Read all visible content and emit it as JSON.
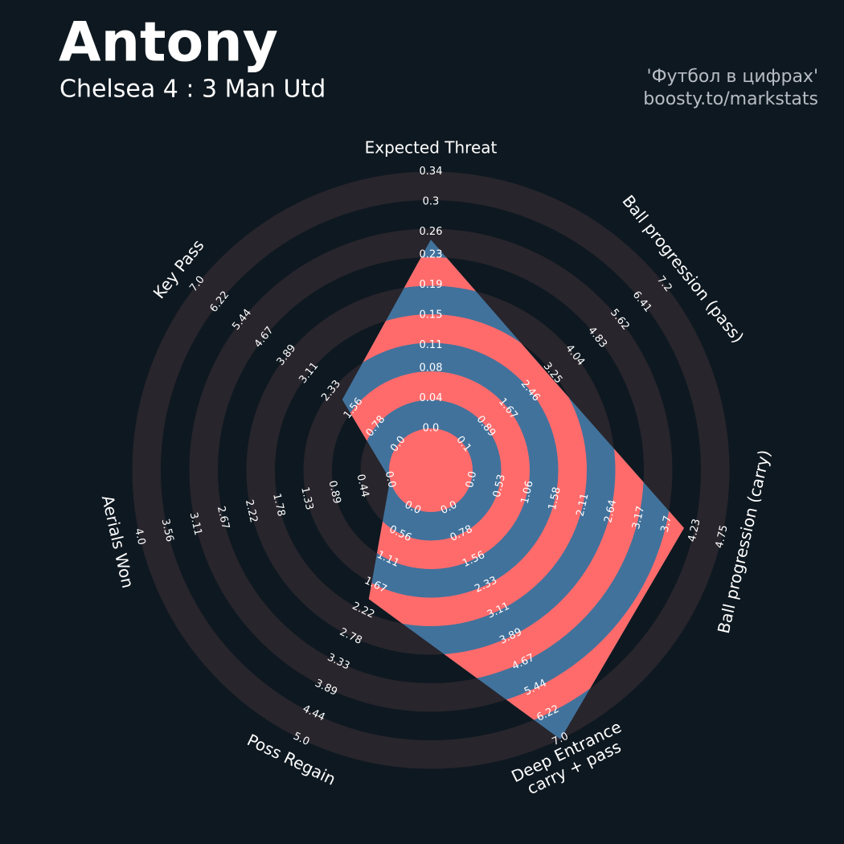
{
  "title": "Antony",
  "subtitle": "Chelsea 4 : 3 Man Utd",
  "credits": [
    "'Футбол в цифрах'",
    "boosty.to/markstats"
  ],
  "chart_data": {
    "type": "radar",
    "categories": [
      "Expected Threat",
      "Ball progression (pass)",
      "Ball progression (carry)",
      "Deep Entrance\ncarry + pass",
      "Poss Regain",
      "Aerials Won",
      "Key Pass"
    ],
    "values": [
      0.25,
      3.14,
      4.03,
      7.0,
      1.97,
      0,
      1.95
    ],
    "axis_lims": [
      [
        0,
        0.34
      ],
      [
        0.1,
        7.2
      ],
      [
        0,
        4.75
      ],
      [
        0,
        7
      ],
      [
        0,
        5
      ],
      [
        0,
        4
      ],
      [
        0,
        7
      ]
    ],
    "axis_ticks": [
      [
        {
          "value": 0,
          "label": "0.0"
        },
        0.04,
        0.08,
        0.11,
        0.15,
        0.19,
        0.23,
        0.26,
        0.3,
        0.34
      ],
      [
        0.1,
        0.89,
        1.67,
        2.46,
        3.25,
        4.04,
        4.83,
        5.62,
        6.41,
        7.2
      ],
      [
        {
          "value": 0,
          "label": "0.0"
        },
        0.53,
        1.06,
        1.58,
        2.11,
        2.64,
        3.17,
        3.7,
        4.23,
        4.75
      ],
      [
        {
          "value": 0,
          "label": "0.0"
        },
        0.78,
        1.56,
        2.33,
        3.11,
        3.89,
        4.67,
        5.44,
        6.22,
        {
          "value": 7,
          "label": "7.0"
        }
      ],
      [
        {
          "value": 0,
          "label": "0.0"
        },
        0.56,
        1.11,
        1.67,
        2.22,
        2.78,
        3.33,
        3.89,
        4.44,
        {
          "value": 5,
          "label": "5.0"
        }
      ],
      [
        {
          "value": 0,
          "label": "0.0"
        },
        0.44,
        0.89,
        1.33,
        1.78,
        2.22,
        2.67,
        3.11,
        3.56,
        {
          "value": 4,
          "label": "4.0"
        }
      ],
      [
        {
          "value": 0,
          "label": "0.0"
        },
        0.78,
        1.56,
        2.33,
        3.11,
        3.89,
        4.67,
        5.44,
        6.22,
        {
          "value": 7,
          "label": "7.0"
        }
      ]
    ],
    "color": "#ff6b6b",
    "alt_color": "#41729c",
    "ring_color": "#28252c"
  }
}
